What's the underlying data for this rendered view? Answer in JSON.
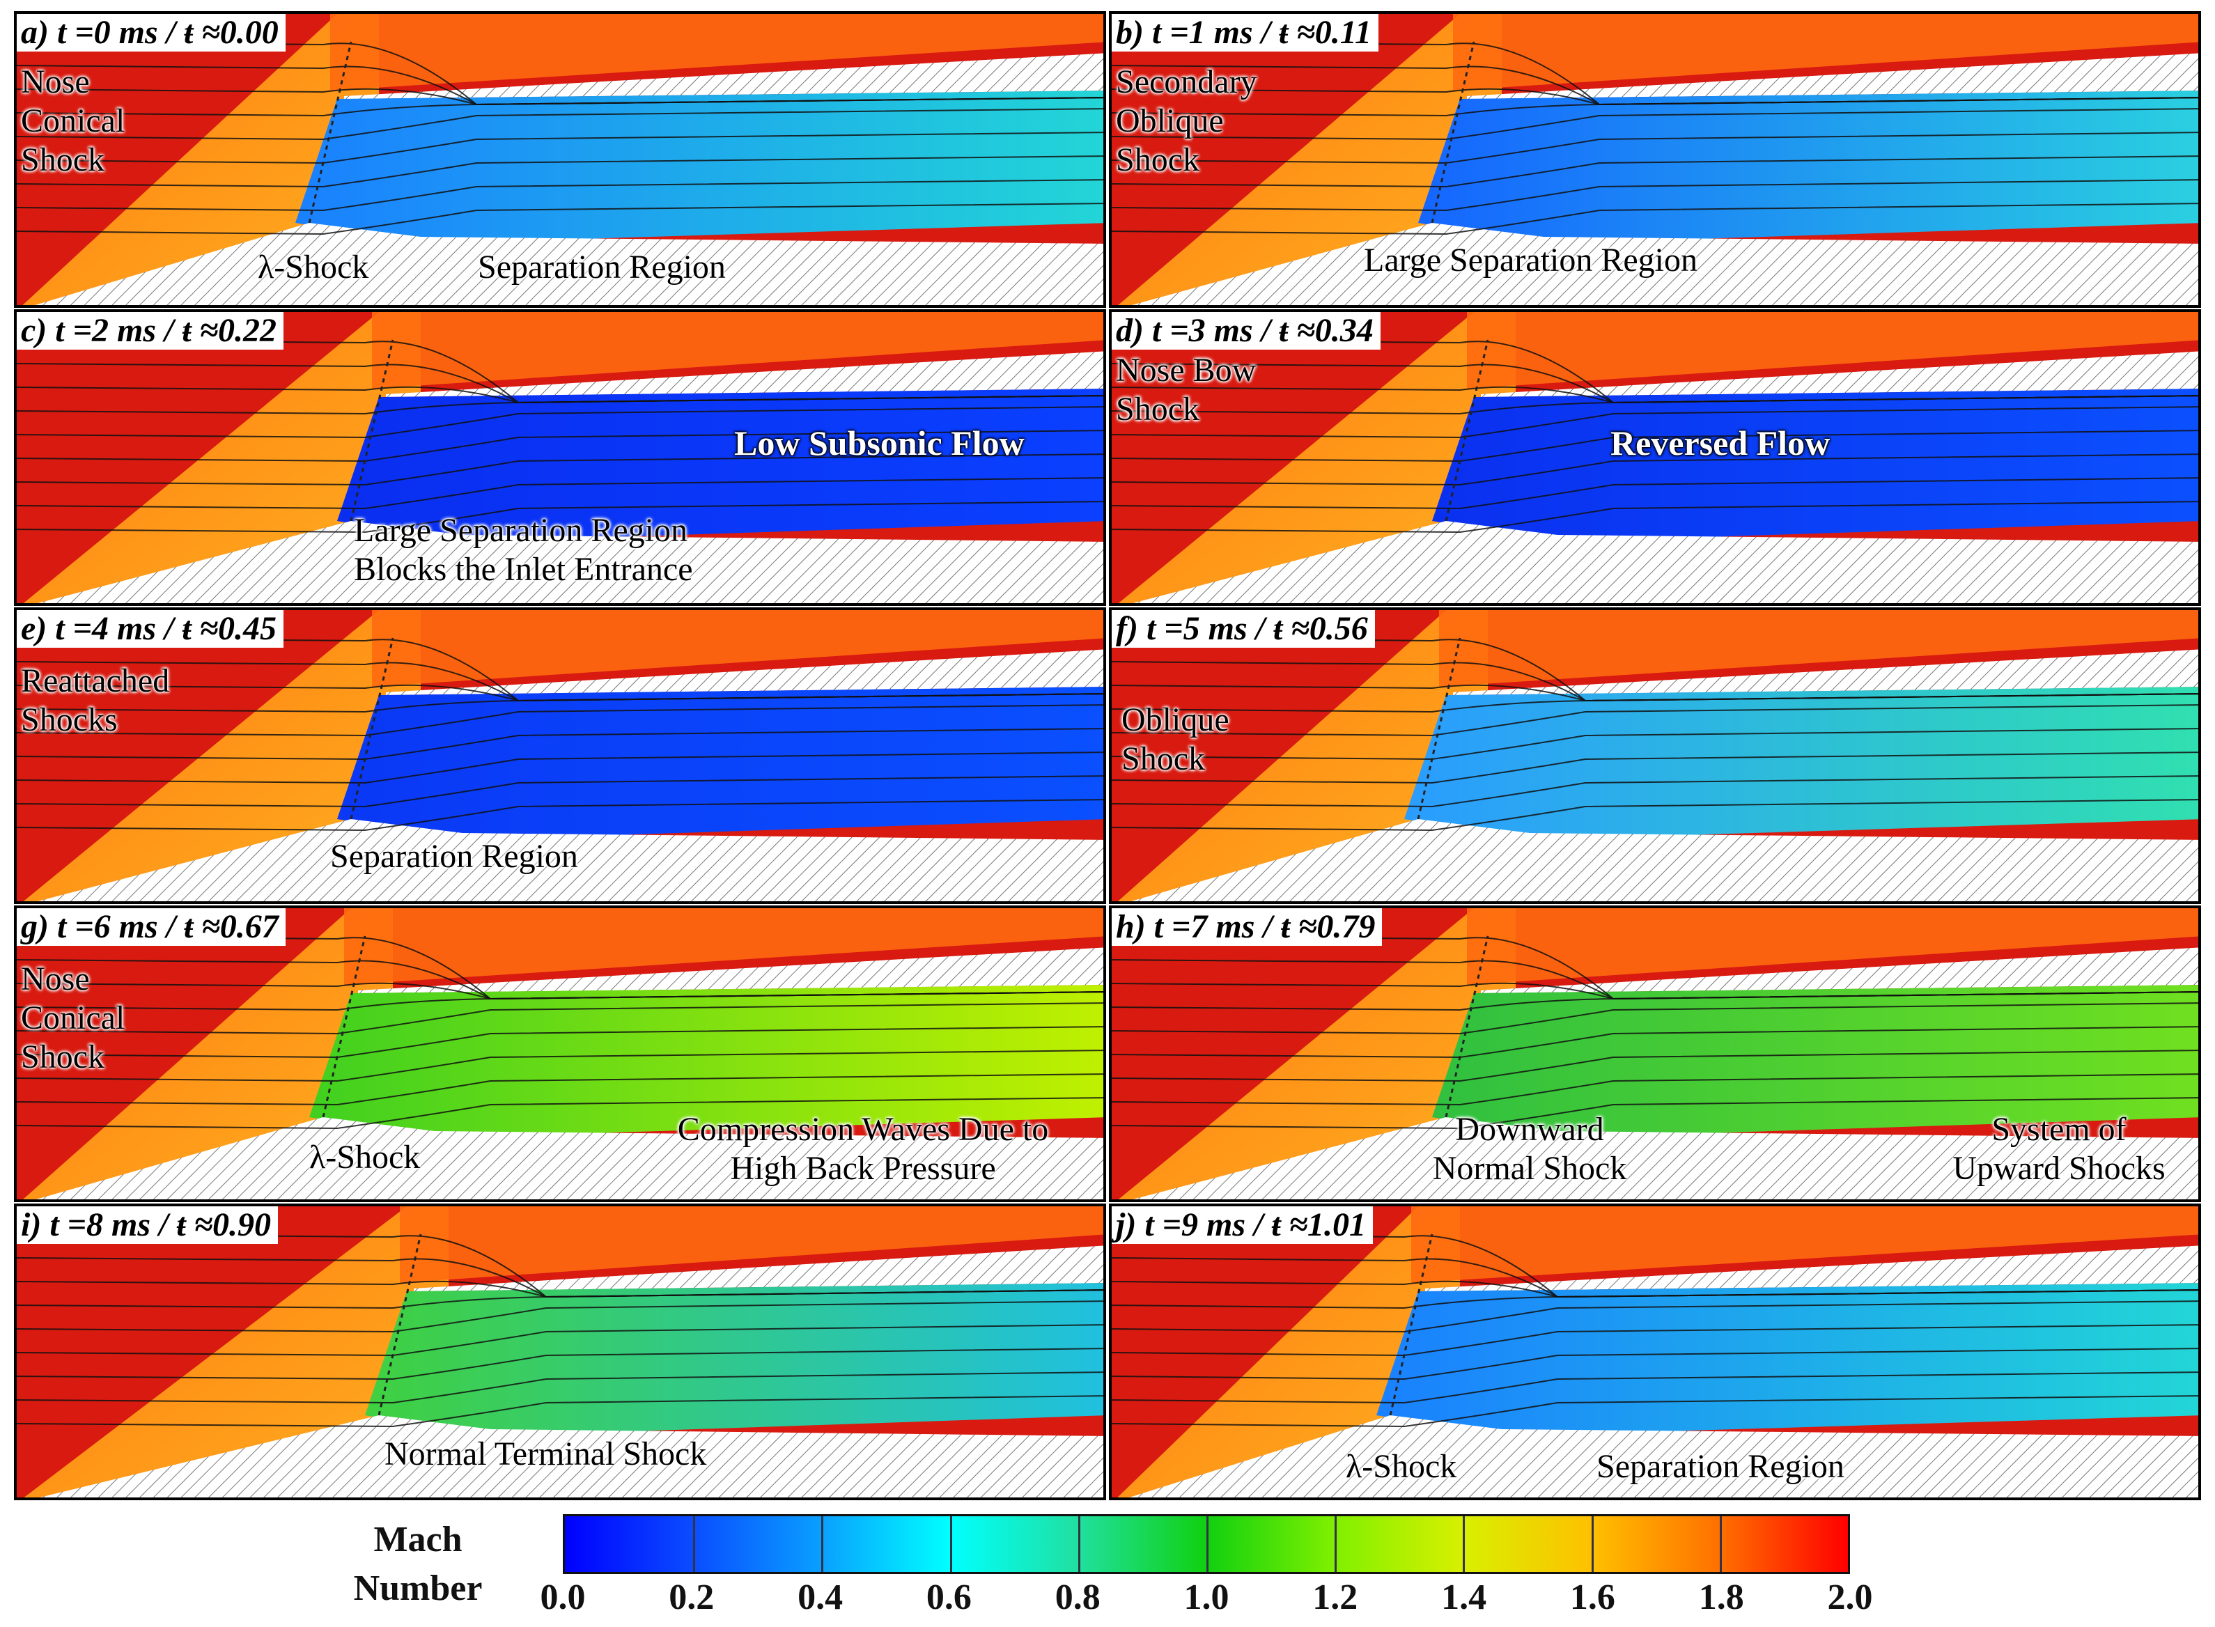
{
  "panels": [
    {
      "label": "a) t =0 ms / ŧ ≈0.00",
      "annotations": [
        "Nose",
        "Conical",
        "Shock",
        "λ-Shock",
        "Separation Region"
      ]
    },
    {
      "label": "b) t =1 ms / ŧ ≈0.11",
      "annotations": [
        "Secondary",
        "Oblique",
        "Shock",
        "Large Separation Region"
      ]
    },
    {
      "label": "c) t =2 ms / ŧ ≈0.22",
      "annotations": [
        "Low Subsonic Flow",
        "Large Separation Region",
        "Blocks the Inlet Entrance"
      ]
    },
    {
      "label": "d) t =3 ms / ŧ ≈0.34",
      "annotations": [
        "Nose Bow",
        "Shock",
        "Reversed Flow"
      ]
    },
    {
      "label": "e) t =4 ms / ŧ ≈0.45",
      "annotations": [
        "Reattached",
        "Shocks",
        "Separation Region"
      ]
    },
    {
      "label": "f) t =5 ms / ŧ ≈0.56",
      "annotations": [
        "Oblique",
        "Shock"
      ]
    },
    {
      "label": "g) t =6 ms / ŧ ≈0.67",
      "annotations": [
        "Nose",
        "Conical",
        "Shock",
        "λ-Shock",
        "Compression Waves Due to",
        "High Back Pressure"
      ]
    },
    {
      "label": "h) t =7 ms / ŧ ≈0.79",
      "annotations": [
        "Downward",
        "Normal Shock",
        "System of",
        "Upward Shocks"
      ]
    },
    {
      "label": "i) t =8 ms / ŧ ≈0.90",
      "annotations": [
        "Normal Terminal Shock"
      ]
    },
    {
      "label": "j) t =9 ms / ŧ ≈1.01",
      "annotations": [
        "λ-Shock",
        "Separation Region"
      ]
    }
  ],
  "colorbar": {
    "title_line1": "Mach",
    "title_line2": "Number",
    "ticks": [
      "0.0",
      "0.2",
      "0.4",
      "0.6",
      "0.8",
      "1.0",
      "1.2",
      "1.4",
      "1.6",
      "1.8",
      "2.0"
    ],
    "min": 0.0,
    "max": 2.0,
    "colors": [
      "#0000ff",
      "#00ffff",
      "#10d010",
      "#ffc000",
      "#ff0000"
    ]
  }
}
